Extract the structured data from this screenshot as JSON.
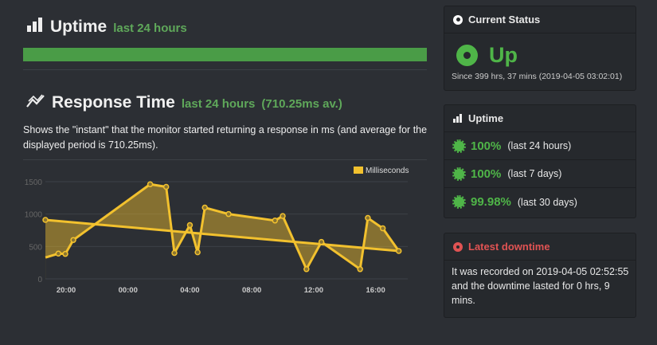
{
  "uptime_section": {
    "title": "Uptime",
    "subtitle": "last 24 hours",
    "bar_percent": 100,
    "bar_color": "#4a9c47",
    "icon": "bar-chart-icon"
  },
  "response_section": {
    "title": "Response Time",
    "subtitle": "last 24 hours",
    "average": "(710.25ms av.)",
    "icon": "line-chart-icon",
    "description": "Shows the \"instant\" that the monitor started returning a response in ms (and average for the displayed period is 710.25ms)."
  },
  "chart_data": {
    "type": "area",
    "legend": "Milliseconds",
    "legend_position": "top-right",
    "color": "#f2c12e",
    "ylim": [
      0,
      1500
    ],
    "yticks": [
      "0",
      "500",
      "1000",
      "1500"
    ],
    "xticks": [
      "20:00",
      "00:00",
      "04:00",
      "08:00",
      "12:00",
      "16:00"
    ],
    "grid": true,
    "x": [
      "18:40",
      "19:30",
      "19:57",
      "20:28",
      "01:26",
      "02:28",
      "03:00",
      "04:00",
      "04:30",
      "04:58",
      "06:30",
      "09:30",
      "10:00",
      "11:32",
      "12:30",
      "15:00",
      "15:30",
      "16:28",
      "17:30",
      "18:00"
    ],
    "values": [
      330,
      390,
      385,
      600,
      1460,
      1420,
      400,
      830,
      410,
      1100,
      1000,
      900,
      970,
      150,
      570,
      150,
      940,
      780,
      430,
      910
    ]
  },
  "current_status": {
    "title": "Current Status",
    "status": "Up",
    "since": "Since 399 hrs, 37 mins (2019-04-05 03:02:01)",
    "color": "#4fb548"
  },
  "uptime_panel": {
    "title": "Uptime",
    "rows": [
      {
        "pct": "100%",
        "label": "(last 24 hours)"
      },
      {
        "pct": "100%",
        "label": "(last 7 days)"
      },
      {
        "pct": "99.98%",
        "label": "(last 30 days)"
      }
    ]
  },
  "downtime": {
    "title": "Latest downtime",
    "text": "It was recorded on 2019-04-05 02:52:55 and the downtime lasted for 0 hrs, 9 mins.",
    "color": "#e05353"
  }
}
